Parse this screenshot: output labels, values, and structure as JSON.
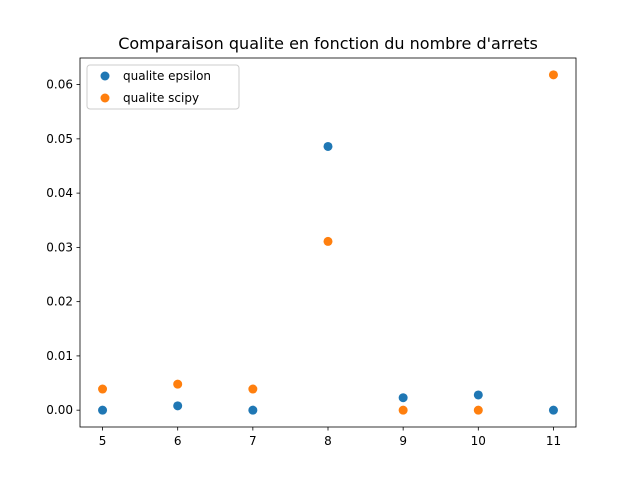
{
  "chart_data": {
    "type": "scatter",
    "title": "Comparaison qualite en fonction du nombre d'arrets",
    "xlabel": "",
    "ylabel": "",
    "x": [
      5,
      6,
      7,
      8,
      9,
      10,
      11
    ],
    "xlim": [
      4.7,
      11.3
    ],
    "ylim": [
      -0.0031,
      0.0649
    ],
    "xticks": [
      "5",
      "6",
      "7",
      "8",
      "9",
      "10",
      "11"
    ],
    "yticks": [
      "0.00",
      "0.01",
      "0.02",
      "0.03",
      "0.04",
      "0.05",
      "0.06"
    ],
    "legend_position": "top-left",
    "grid": false,
    "series": [
      {
        "name": "qualite epsilon",
        "color": "#1f77b4",
        "values": [
          0.0,
          0.0008,
          0.0,
          0.0486,
          0.0023,
          0.0028,
          0.0
        ]
      },
      {
        "name": "qualite scipy",
        "color": "#ff7f0e",
        "values": [
          0.0039,
          0.0048,
          0.0039,
          0.0311,
          0.0,
          0.0,
          0.0618
        ]
      }
    ]
  }
}
